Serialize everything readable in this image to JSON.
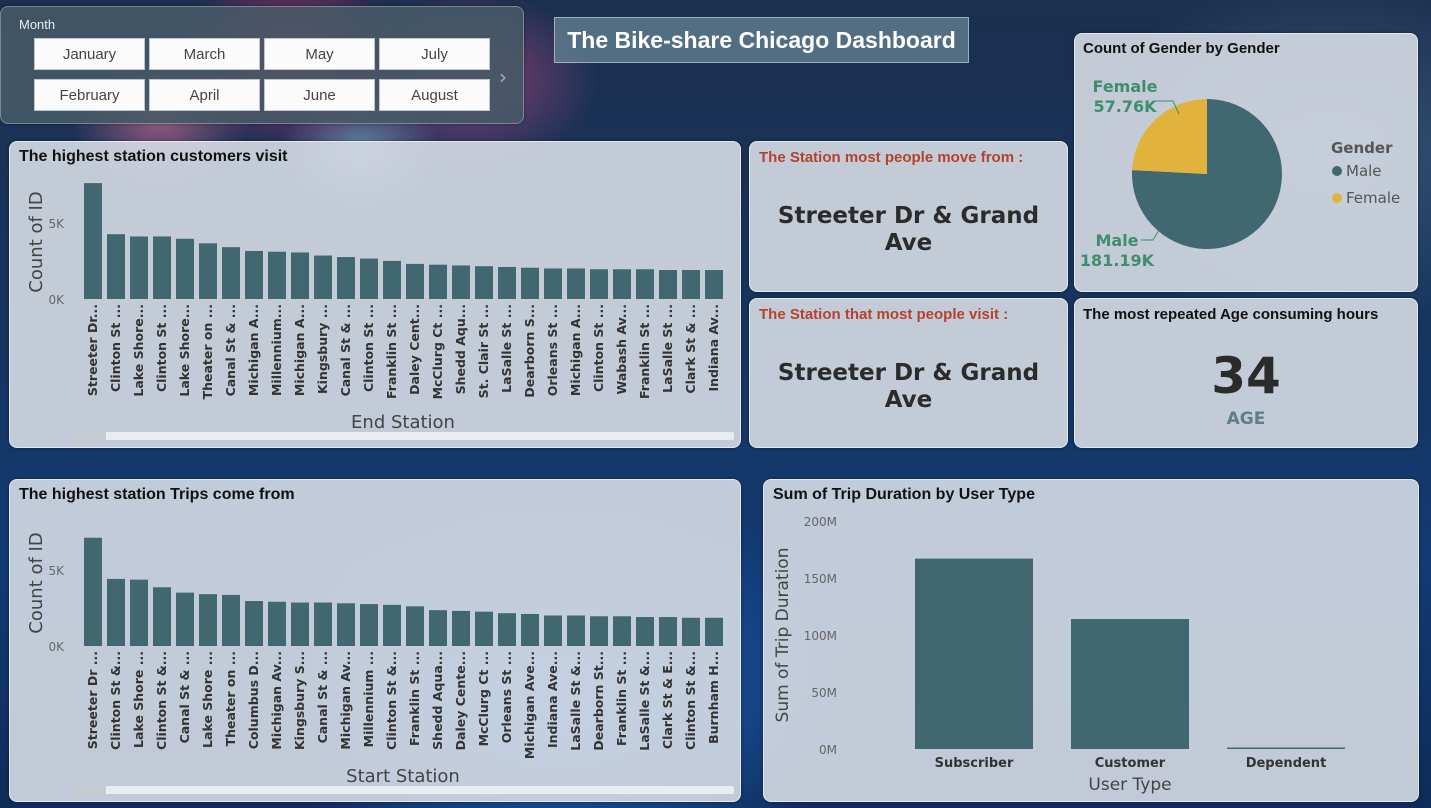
{
  "dashboard_title": "The Bike-share Chicago Dashboard",
  "month_slicer": {
    "label": "Month",
    "options": [
      "January",
      "March",
      "May",
      "July",
      "February",
      "April",
      "June",
      "August"
    ]
  },
  "cards": {
    "from_station": {
      "title": "The Station most people move from :",
      "value_line1": "Streeter Dr & Grand",
      "value_line2": "Ave"
    },
    "visit_station": {
      "title": "The Station that most people visit :",
      "value_line1": "Streeter Dr & Grand",
      "value_line2": "Ave"
    },
    "age": {
      "title": "The most repeated Age consuming hours",
      "value": "34",
      "unit": "AGE"
    }
  },
  "colors": {
    "bar": "#416770",
    "female": "#e2b33c",
    "male": "#416770",
    "card_title": "#b5412f",
    "pie_label": "#3e8e6e"
  },
  "chart_data": [
    {
      "id": "end_station",
      "type": "bar",
      "title": "The highest station customers visit",
      "xlabel": "End Station",
      "ylabel": "Count of ID",
      "yticks": [
        "0K",
        "5K"
      ],
      "ylim": [
        0,
        8000
      ],
      "categories": [
        "Streeter Dr...",
        "Clinton St ...",
        "Lake Shore...",
        "Clinton St ...",
        "Lake Shore...",
        "Theater on ...",
        "Canal St & ...",
        "Michigan A...",
        "Millennium...",
        "Michigan A...",
        "Kingsbury ...",
        "Canal St & ...",
        "Clinton St ...",
        "Franklin St ...",
        "Daley Cent...",
        "McClurg Ct ...",
        "Shedd Aqu...",
        "St. Clair St ...",
        "LaSalle St ...",
        "Dearborn S...",
        "Orleans St ...",
        "Michigan A...",
        "Clinton St ...",
        "Wabash Av...",
        "Franklin St ...",
        "LaSalle St ...",
        "Clark St & ...",
        "Indiana Av..."
      ],
      "values": [
        7600,
        4250,
        4100,
        4100,
        3950,
        3650,
        3400,
        3150,
        3100,
        3050,
        2850,
        2750,
        2650,
        2500,
        2300,
        2250,
        2200,
        2150,
        2100,
        2050,
        2000,
        2000,
        1950,
        1950,
        1950,
        1900,
        1900,
        1900
      ]
    },
    {
      "id": "start_station",
      "type": "bar",
      "title": "The highest station Trips come from",
      "xlabel": "Start Station",
      "ylabel": "Count of ID",
      "yticks": [
        "0K",
        "5K"
      ],
      "ylim": [
        0,
        8000
      ],
      "categories": [
        "Streeter Dr ...",
        "Clinton St &...",
        "Lake Shore ...",
        "Clinton St &...",
        "Canal St & ...",
        "Lake Shore ...",
        "Theater on ...",
        "Columbus D...",
        "Michigan Av...",
        "Kingsbury S...",
        "Canal St & ...",
        "Michigan Av...",
        "Millennium ...",
        "Clinton St &...",
        "Franklin St ...",
        "Shedd Aqua...",
        "Daley Cente...",
        "McClurg Ct ...",
        "Orleans St ...",
        "Michigan Ave...",
        "Indiana Ave...",
        "LaSalle St &...",
        "Dearborn St...",
        "Franklin St ...",
        "LaSalle St &...",
        "Clark St & E...",
        "Clinton St &...",
        "Burnham H..."
      ],
      "values": [
        7100,
        4400,
        4350,
        3850,
        3500,
        3400,
        3350,
        2950,
        2900,
        2850,
        2850,
        2800,
        2750,
        2700,
        2600,
        2350,
        2300,
        2250,
        2150,
        2100,
        2000,
        2000,
        1950,
        1950,
        1900,
        1900,
        1850,
        1850
      ]
    },
    {
      "id": "gender",
      "type": "pie",
      "title": "Count of Gender by Gender",
      "legend_title": "Gender",
      "legend_position": "right",
      "slices": [
        {
          "name": "Male",
          "value": 181190,
          "label": "181.19K",
          "color": "#416770"
        },
        {
          "name": "Female",
          "value": 57760,
          "label": "57.76K",
          "color": "#e2b33c"
        }
      ]
    },
    {
      "id": "trip_duration",
      "type": "bar",
      "title": "Sum of Trip Duration by User Type",
      "xlabel": "User Type",
      "ylabel": "Sum of Trip Duration",
      "yticks": [
        "0M",
        "50M",
        "100M",
        "150M",
        "200M"
      ],
      "ylim": [
        0,
        200000000
      ],
      "categories": [
        "Subscriber",
        "Customer",
        "Dependent"
      ],
      "values": [
        167000000,
        114000000,
        1000000
      ]
    }
  ]
}
